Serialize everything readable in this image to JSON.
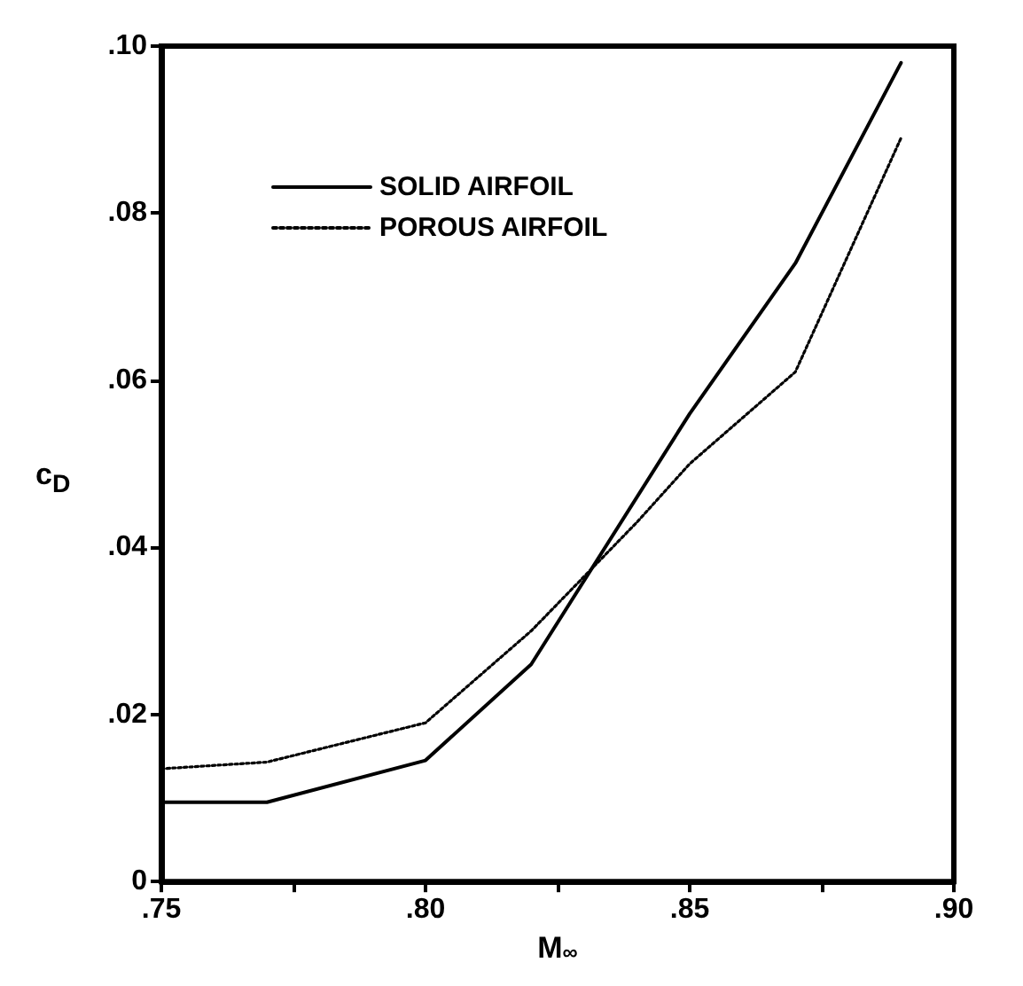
{
  "chart_data": {
    "type": "line",
    "xlabel": "M$_{∞}$",
    "ylabel": "c$_{D}$",
    "series": [
      {
        "name": "SOLID AIRFOIL",
        "color": "#000000",
        "line_style": "solid",
        "x": [
          0.75,
          0.77,
          0.8,
          0.82,
          0.85,
          0.87,
          0.89
        ],
        "values": [
          0.0095,
          0.0095,
          0.0145,
          0.026,
          0.056,
          0.074,
          0.098
        ]
      },
      {
        "name": "POROUS AIRFOIL",
        "color": "#000000",
        "line_style": "dotted",
        "x": [
          0.75,
          0.77,
          0.8,
          0.82,
          0.84,
          0.85,
          0.87,
          0.89
        ],
        "values": [
          0.0135,
          0.0143,
          0.019,
          0.03,
          0.043,
          0.05,
          0.061,
          0.089
        ]
      }
    ],
    "xlim": [
      0.75,
      0.9
    ],
    "ylim": [
      0,
      0.1
    ],
    "xticks": [
      {
        "value": 0.75,
        "label": ".75"
      },
      {
        "value": 0.775,
        "label": null
      },
      {
        "value": 0.8,
        "label": ".80"
      },
      {
        "value": 0.825,
        "label": null
      },
      {
        "value": 0.85,
        "label": ".85"
      },
      {
        "value": 0.875,
        "label": null
      },
      {
        "value": 0.9,
        "label": ".90"
      }
    ],
    "yticks": [
      0,
      {
        "value": 0.02,
        "label": ".02"
      },
      {
        "value": 0.04,
        "label": ".04"
      },
      {
        "value": 0.06,
        "label": ".06"
      },
      {
        "value": 0.08,
        "label": ".08"
      },
      {
        "value": 0.1,
        "label": ".10"
      }
    ],
    "grid": false,
    "legend": "top left",
    "marker": "none"
  }
}
